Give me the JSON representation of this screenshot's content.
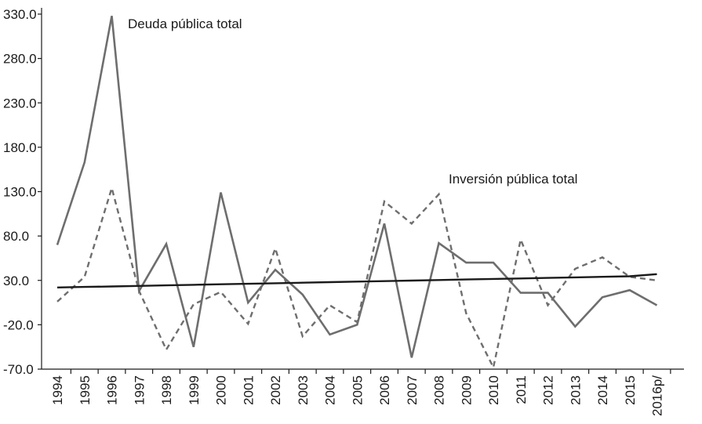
{
  "chart_data": {
    "type": "line",
    "title": "",
    "xlabel": "",
    "ylabel": "",
    "ylim": [
      -70,
      330
    ],
    "y_ticks": [
      "330.0",
      "280.0",
      "230.0",
      "180.0",
      "130.0",
      "80.0",
      "30.0",
      "-20.0",
      "-70.0"
    ],
    "y_tick_values": [
      330,
      280,
      230,
      180,
      130,
      80,
      30,
      -20,
      -70
    ],
    "categories": [
      "1994",
      "1995",
      "1996",
      "1997",
      "1998",
      "1999",
      "2000",
      "2001",
      "2002",
      "2003",
      "2004",
      "2005",
      "2006",
      "2007",
      "2008",
      "2009",
      "2010",
      "2011",
      "2012",
      "2013",
      "2014",
      "2015",
      "2016p/"
    ],
    "grid": false,
    "legend": "none",
    "series": [
      {
        "name": "Deuda pública total",
        "style": "solid",
        "color": "#6e6e6e",
        "values": [
          70,
          163,
          328,
          18,
          71,
          -45,
          129,
          5,
          42,
          14,
          -31,
          -20,
          94,
          -57,
          72,
          50,
          50,
          16,
          16,
          -22,
          11,
          19,
          2
        ]
      },
      {
        "name": "Inversión pública total",
        "style": "dashed",
        "color": "#6e6e6e",
        "values": [
          6,
          34,
          134,
          18,
          -48,
          3,
          17,
          -19,
          66,
          -33,
          2,
          -17,
          119,
          94,
          127,
          -7,
          -68,
          76,
          2,
          43,
          56,
          34,
          30
        ]
      },
      {
        "name": "",
        "style": "trend",
        "color": "#1a1a1a",
        "values": [
          22,
          22.6,
          23.2,
          23.8,
          24.4,
          25,
          25.6,
          26.2,
          26.8,
          27.4,
          28,
          28.6,
          29.2,
          29.8,
          30.4,
          31,
          31.6,
          32.2,
          32.8,
          33.4,
          34,
          34.6,
          37
        ]
      }
    ],
    "annotations": [
      {
        "text": "Deuda pública total",
        "series": "Deuda pública total"
      },
      {
        "text": "Inversión pública total",
        "series": "Inversión pública total"
      }
    ]
  }
}
